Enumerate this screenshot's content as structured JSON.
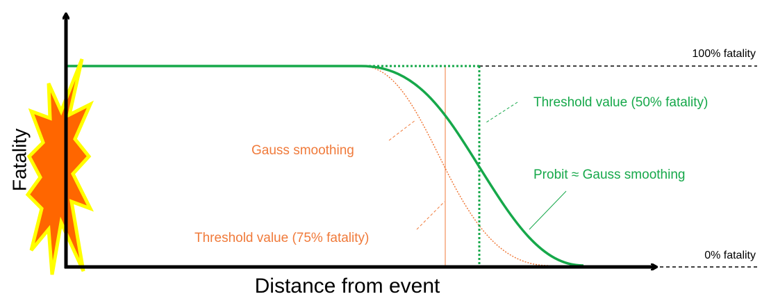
{
  "axes": {
    "y_label": "Fatality",
    "x_label": "Distance from event"
  },
  "levels": {
    "top": "100% fatality",
    "bottom": "0% fatality"
  },
  "annotations": {
    "threshold_50": "Threshold value (50% fatality)",
    "probit": "Probit ≈ Gauss smoothing",
    "gauss": "Gauss smoothing",
    "threshold_75": "Threshold value (75% fatality)"
  }
}
